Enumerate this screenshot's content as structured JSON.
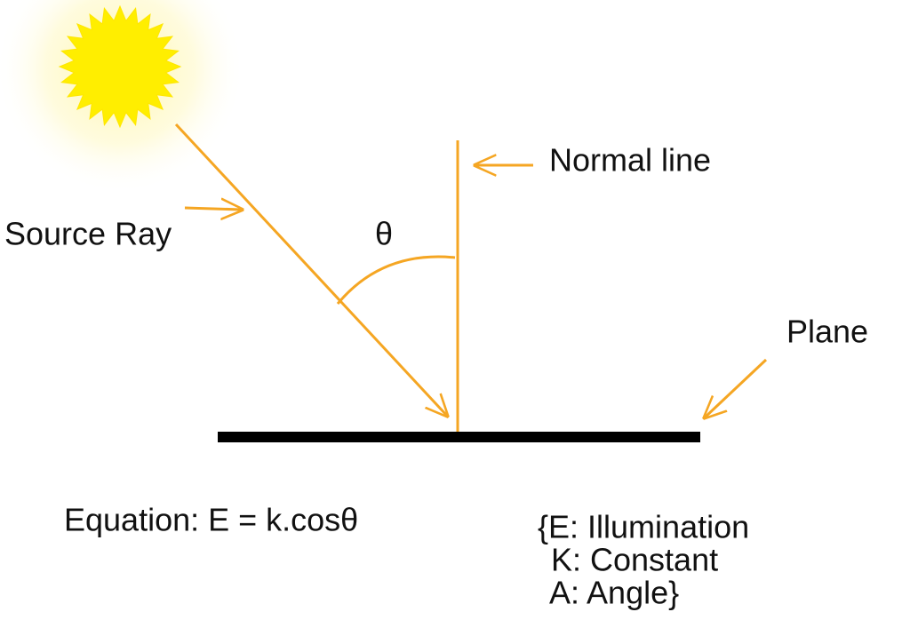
{
  "labels": {
    "normal_line": "Normal line",
    "source_ray": "Source Ray",
    "angle": "θ",
    "plane": "Plane"
  },
  "equation": "Equation: E = k.cosθ",
  "legend": [
    "{E: Illumination",
    "K: Constant",
    "A: Angle}"
  ]
}
